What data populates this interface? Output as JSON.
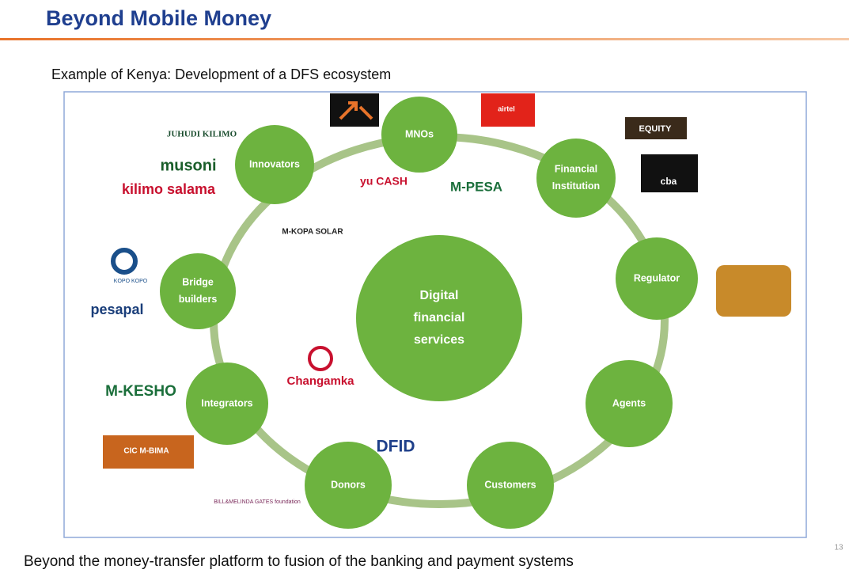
{
  "header": {
    "title": "Beyond Mobile Money",
    "subtitle": "Example of Kenya: Development of a DFS ecosystem"
  },
  "diagram": {
    "center": [
      "Digital",
      "financial",
      "services"
    ],
    "nodes": [
      {
        "label": [
          "MNOs"
        ]
      },
      {
        "label": [
          "Financial",
          "Institution"
        ]
      },
      {
        "label": [
          "Regulator"
        ]
      },
      {
        "label": [
          "Agents"
        ]
      },
      {
        "label": [
          "Customers"
        ]
      },
      {
        "label": [
          "Donors"
        ]
      },
      {
        "label": [
          "Integrators"
        ]
      },
      {
        "label": [
          "Bridge",
          "builders"
        ]
      },
      {
        "label": [
          "Innovators"
        ]
      }
    ],
    "logos": [
      "JUHUDI KILIMO",
      "musoni",
      "kilimo salama",
      "M-KOPA SOLAR",
      "KOPO KOPO",
      "pesapal",
      "Changamka",
      "M-KESHO",
      "CIC M-BIMA",
      "DFID",
      "BILL&MELINDA GATES foundation",
      "yu CASH",
      "M-PESA",
      "airtel",
      "EQUITY",
      "cba"
    ]
  },
  "footer": {
    "text": "Beyond the money-transfer platform to fusion of the banking and payment systems",
    "page": "13"
  }
}
